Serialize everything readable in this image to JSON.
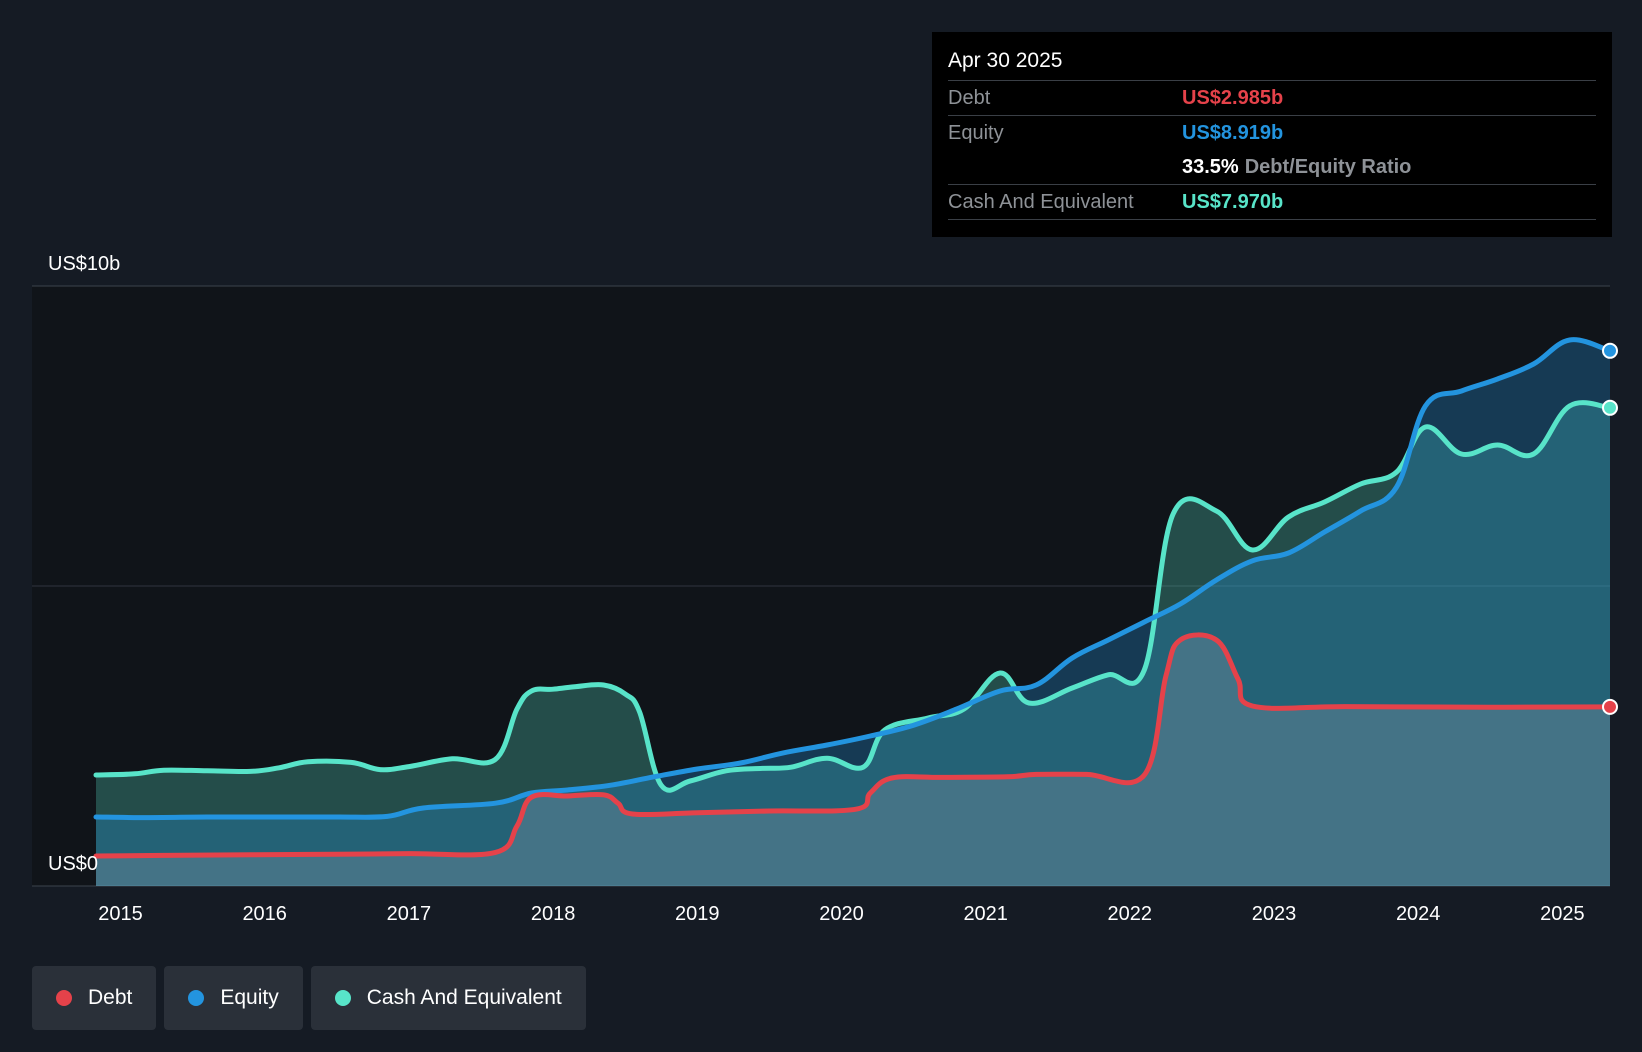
{
  "colors": {
    "debt": "#e5424a",
    "equity": "#2394df",
    "cash": "#58e4c9",
    "background": "#151b24"
  },
  "tooltip": {
    "date": "Apr 30 2025",
    "debt_label": "Debt",
    "debt_value": "US$2.985b",
    "equity_label": "Equity",
    "equity_value": "US$8.919b",
    "ratio_value": "33.5%",
    "ratio_label": "Debt/Equity Ratio",
    "cash_label": "Cash And Equivalent",
    "cash_value": "US$7.970b"
  },
  "legend": [
    {
      "label": "Debt",
      "color": "#e5424a"
    },
    {
      "label": "Equity",
      "color": "#2394df"
    },
    {
      "label": "Cash And Equivalent",
      "color": "#58e4c9"
    }
  ],
  "chart_data": {
    "type": "area",
    "title": "",
    "xlabel": "",
    "ylabel": "",
    "ylim": [
      0,
      10
    ],
    "xlim": [
      2014.83,
      2025.33
    ],
    "y_tick_labels": [
      {
        "value": 10,
        "label": "US$10b"
      },
      {
        "value": 0,
        "label": "US$0"
      }
    ],
    "x_tick_labels": [
      "2015",
      "2016",
      "2017",
      "2018",
      "2019",
      "2020",
      "2021",
      "2022",
      "2023",
      "2024",
      "2025"
    ],
    "series": [
      {
        "name": "Cash And Equivalent",
        "key": "cash",
        "points": [
          [
            2014.83,
            1.85
          ],
          [
            2015.1,
            1.87
          ],
          [
            2015.3,
            1.93
          ],
          [
            2015.6,
            1.92
          ],
          [
            2015.9,
            1.91
          ],
          [
            2016.1,
            1.97
          ],
          [
            2016.3,
            2.07
          ],
          [
            2016.6,
            2.06
          ],
          [
            2016.8,
            1.94
          ],
          [
            2017.0,
            1.99
          ],
          [
            2017.3,
            2.12
          ],
          [
            2017.6,
            2.11
          ],
          [
            2017.75,
            2.95
          ],
          [
            2017.85,
            3.25
          ],
          [
            2018.0,
            3.28
          ],
          [
            2018.15,
            3.32
          ],
          [
            2018.35,
            3.35
          ],
          [
            2018.5,
            3.2
          ],
          [
            2018.6,
            2.9
          ],
          [
            2018.75,
            1.68
          ],
          [
            2018.95,
            1.75
          ],
          [
            2019.2,
            1.92
          ],
          [
            2019.45,
            1.96
          ],
          [
            2019.65,
            1.98
          ],
          [
            2019.9,
            2.13
          ],
          [
            2020.15,
            1.98
          ],
          [
            2020.3,
            2.6
          ],
          [
            2020.6,
            2.8
          ],
          [
            2020.85,
            2.95
          ],
          [
            2021.1,
            3.55
          ],
          [
            2021.3,
            3.05
          ],
          [
            2021.6,
            3.3
          ],
          [
            2021.85,
            3.52
          ],
          [
            2022.1,
            3.6
          ],
          [
            2022.3,
            6.2
          ],
          [
            2022.6,
            6.25
          ],
          [
            2022.85,
            5.6
          ],
          [
            2023.1,
            6.15
          ],
          [
            2023.35,
            6.4
          ],
          [
            2023.6,
            6.7
          ],
          [
            2023.85,
            6.9
          ],
          [
            2024.05,
            7.65
          ],
          [
            2024.3,
            7.2
          ],
          [
            2024.55,
            7.35
          ],
          [
            2024.8,
            7.2
          ],
          [
            2025.05,
            8.0
          ],
          [
            2025.33,
            7.97
          ]
        ]
      },
      {
        "name": "Equity",
        "key": "equity",
        "points": [
          [
            2014.83,
            1.15
          ],
          [
            2015.2,
            1.14
          ],
          [
            2015.6,
            1.15
          ],
          [
            2016.0,
            1.15
          ],
          [
            2016.5,
            1.15
          ],
          [
            2016.85,
            1.16
          ],
          [
            2017.1,
            1.3
          ],
          [
            2017.6,
            1.38
          ],
          [
            2017.85,
            1.55
          ],
          [
            2018.1,
            1.6
          ],
          [
            2018.4,
            1.68
          ],
          [
            2018.7,
            1.82
          ],
          [
            2019.0,
            1.95
          ],
          [
            2019.3,
            2.05
          ],
          [
            2019.6,
            2.22
          ],
          [
            2019.9,
            2.35
          ],
          [
            2020.2,
            2.5
          ],
          [
            2020.5,
            2.68
          ],
          [
            2020.8,
            2.95
          ],
          [
            2021.1,
            3.25
          ],
          [
            2021.35,
            3.35
          ],
          [
            2021.6,
            3.8
          ],
          [
            2021.85,
            4.1
          ],
          [
            2022.1,
            4.4
          ],
          [
            2022.35,
            4.7
          ],
          [
            2022.6,
            5.1
          ],
          [
            2022.85,
            5.42
          ],
          [
            2023.1,
            5.55
          ],
          [
            2023.35,
            5.9
          ],
          [
            2023.6,
            6.25
          ],
          [
            2023.85,
            6.65
          ],
          [
            2024.05,
            8.0
          ],
          [
            2024.3,
            8.25
          ],
          [
            2024.55,
            8.45
          ],
          [
            2024.8,
            8.7
          ],
          [
            2025.05,
            9.1
          ],
          [
            2025.33,
            8.92
          ]
        ]
      },
      {
        "name": "Debt",
        "key": "debt",
        "points": [
          [
            2014.83,
            0.5
          ],
          [
            2015.3,
            0.51
          ],
          [
            2015.9,
            0.52
          ],
          [
            2016.5,
            0.53
          ],
          [
            2017.0,
            0.54
          ],
          [
            2017.6,
            0.56
          ],
          [
            2017.75,
            1.0
          ],
          [
            2017.85,
            1.48
          ],
          [
            2018.1,
            1.5
          ],
          [
            2018.35,
            1.52
          ],
          [
            2018.45,
            1.38
          ],
          [
            2018.55,
            1.2
          ],
          [
            2019.0,
            1.22
          ],
          [
            2019.5,
            1.25
          ],
          [
            2020.1,
            1.28
          ],
          [
            2020.2,
            1.55
          ],
          [
            2020.35,
            1.8
          ],
          [
            2020.7,
            1.81
          ],
          [
            2021.15,
            1.82
          ],
          [
            2021.35,
            1.86
          ],
          [
            2021.7,
            1.86
          ],
          [
            2022.1,
            1.85
          ],
          [
            2022.25,
            3.5
          ],
          [
            2022.35,
            4.1
          ],
          [
            2022.6,
            4.1
          ],
          [
            2022.75,
            3.45
          ],
          [
            2022.85,
            3.0
          ],
          [
            2023.5,
            2.99
          ],
          [
            2024.5,
            2.98
          ],
          [
            2025.33,
            2.985
          ]
        ]
      }
    ]
  }
}
